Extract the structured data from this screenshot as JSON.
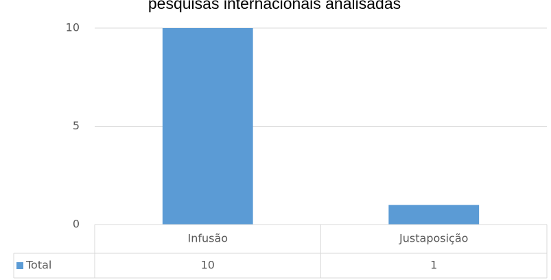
{
  "chart_data": {
    "type": "bar",
    "title": "pesquisas internacionais analisadas",
    "categories": [
      "Infusão",
      "Justaposição"
    ],
    "series": [
      {
        "name": "Total",
        "color": "#5b9bd5",
        "values": [
          10,
          1
        ]
      }
    ],
    "ylim": [
      0,
      10
    ],
    "yticks": [
      0,
      5,
      10
    ],
    "grid": true,
    "data_table": true
  }
}
